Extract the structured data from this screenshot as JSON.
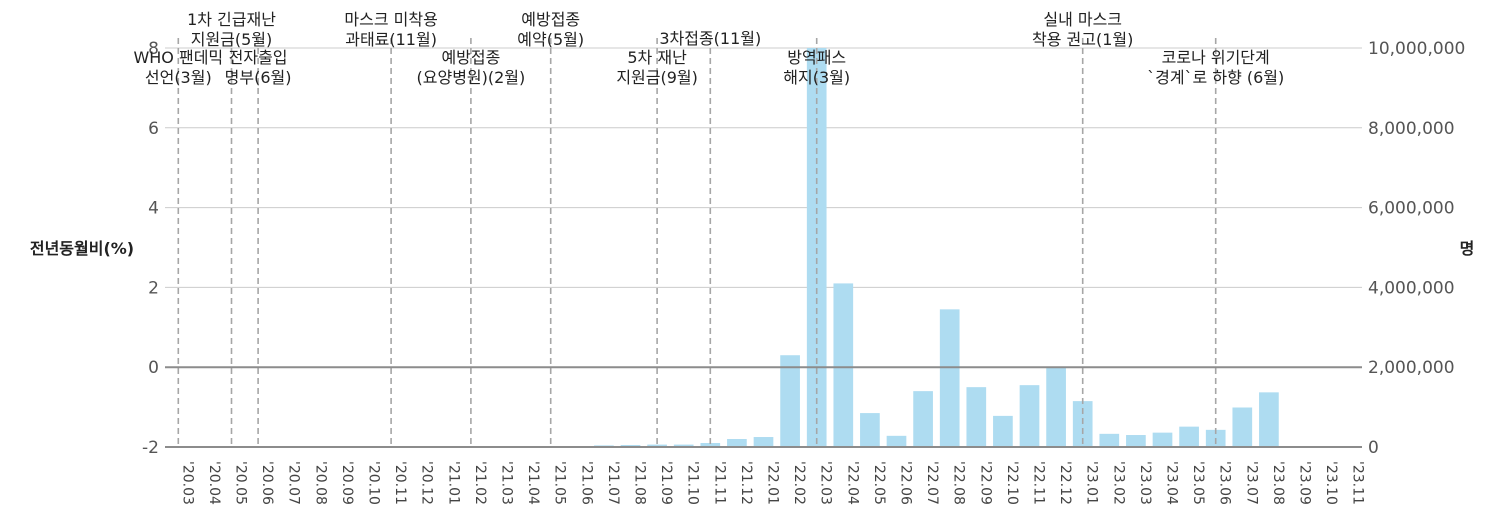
{
  "chart_data": {
    "type": "bar",
    "title": "",
    "ylabel_left": "전년동월비(%)",
    "ylabel_right": "명",
    "ylim_left": [
      -2,
      8
    ],
    "yticks_left": [
      "-2",
      "0",
      "2",
      "4",
      "6",
      "8"
    ],
    "ylim_right": [
      0,
      10000000
    ],
    "yticks_right": [
      "0",
      "2,000,000",
      "4,000,000",
      "6,000,000",
      "8,000,000",
      "10,000,000"
    ],
    "grid": true,
    "colors": {
      "bar": "#aedcf1",
      "zero_line": "#8c8c8c",
      "grid": "#cccccc",
      "event_line": "#a6a6a6"
    },
    "categories": [
      "'20.03",
      "'20.04",
      "'20.05",
      "'20.06",
      "'20.07",
      "'20.08",
      "'20.09",
      "'20.10",
      "'20.11",
      "'20.12",
      "'21.01",
      "'21.02",
      "'21.03",
      "'21.04",
      "'21.05",
      "'21.06",
      "'21.07",
      "'21.08",
      "'21.09",
      "'21.10",
      "'21.11",
      "'21.12",
      "'22.01",
      "'22.02",
      "'22.03",
      "'22.04",
      "'22.05",
      "'22.06",
      "'22.07",
      "'22.08",
      "'22.09",
      "'22.10",
      "'22.11",
      "'22.12",
      "'23.01",
      "'23.02",
      "'23.03",
      "'23.04",
      "'23.05",
      "'23.06",
      "'23.07",
      "'23.08",
      "'23.09",
      "'23.10",
      "'23.11"
    ],
    "series": [
      {
        "axis": "right",
        "values": [
          5000,
          2000,
          1000,
          1000,
          2000,
          3000,
          2000,
          3000,
          8000,
          20000,
          15000,
          10000,
          12000,
          20000,
          20000,
          20000,
          40000,
          50000,
          60000,
          60000,
          100000,
          200000,
          250000,
          2300000,
          10000000,
          4100000,
          850000,
          280000,
          1400000,
          3450000,
          1500000,
          780000,
          1550000,
          2000000,
          1150000,
          330000,
          300000,
          360000,
          510000,
          430000,
          990000,
          1370000,
          0,
          0,
          0
        ]
      }
    ],
    "events": [
      {
        "month": "'20.03",
        "label": [
          "WHO 팬데믹",
          "선언(3월)"
        ]
      },
      {
        "month": "'20.05",
        "label": [
          "1차 긴급재난",
          "지원금(5월)"
        ]
      },
      {
        "month": "'20.06",
        "label": [
          "전자출입",
          "명부(6월)"
        ]
      },
      {
        "month": "'20.11",
        "label": [
          "마스크 미착용",
          "과태료(11월)"
        ]
      },
      {
        "month": "'21.02",
        "label": [
          "예방접종",
          "(요양병원)(2월)"
        ]
      },
      {
        "month": "'21.05",
        "label": [
          "예방접종",
          "예약(5월)"
        ]
      },
      {
        "month": "'21.09",
        "label": [
          "5차 재난",
          "지원금(9월)"
        ]
      },
      {
        "month": "'21.11",
        "label": [
          "3차접종(11월)"
        ]
      },
      {
        "month": "'22.03",
        "label": [
          "방역패스",
          "해지(3월)"
        ]
      },
      {
        "month": "'23.01",
        "label": [
          "실내 마스크",
          "착용 권고(1월)"
        ]
      },
      {
        "month": "'23.06",
        "label": [
          "코로나 위기단계",
          "`경계`로 하향 (6월)"
        ]
      }
    ]
  }
}
